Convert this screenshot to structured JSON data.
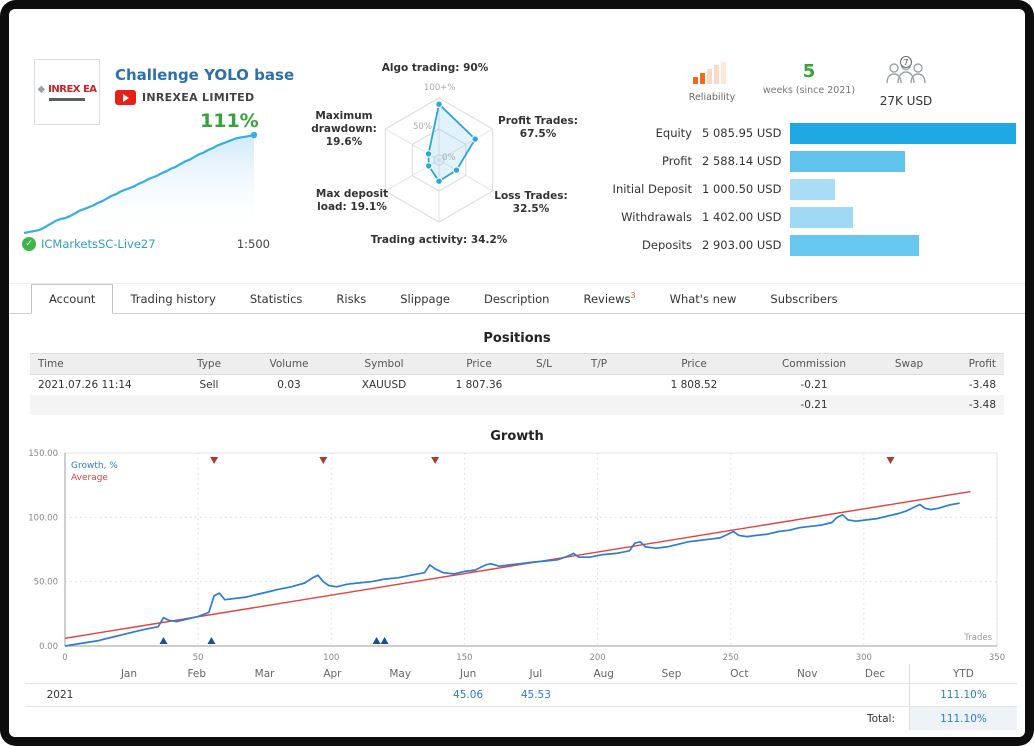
{
  "header": {
    "logo_text": "INREX EA",
    "title": "Challenge YOLO base",
    "company": "INREXEA LIMITED",
    "growth_badge": "111%",
    "account": "ICMarketsSC-Live27",
    "leverage": "1:500"
  },
  "reliability": {
    "label": "Reliability",
    "weeks_value": "5",
    "weeks_caption": "weeks (since 2021)",
    "subscribers_count": "7",
    "funds": "27K USD"
  },
  "radar": {
    "axes": [
      {
        "label": "Algo trading: 90%",
        "value": 90
      },
      {
        "label": "Profit Trades: 67.5%",
        "value": 67.5
      },
      {
        "label": "Loss Trades: 32.5%",
        "value": 32.5
      },
      {
        "label": "Trading activity: 34.2%",
        "value": 34.2
      },
      {
        "label": "Max deposit load: 19.1%",
        "value": 19.1
      },
      {
        "label": "Maximum drawdown: 19.6%",
        "value": 19.6
      }
    ],
    "rings": [
      "100+%",
      "50%",
      "0%"
    ],
    "accent": "#2aa6da"
  },
  "stats": {
    "rows": [
      {
        "label": "Equity",
        "value": "5 085.95 USD",
        "bar_pct": 100,
        "color": "#1fa9e4"
      },
      {
        "label": "Profit",
        "value": "2 588.14 USD",
        "bar_pct": 51,
        "color": "#5fc3ec"
      },
      {
        "label": "Initial Deposit",
        "value": "1 000.50 USD",
        "bar_pct": 20,
        "color": "#a9dcf6"
      },
      {
        "label": "Withdrawals",
        "value": "1 402.00 USD",
        "bar_pct": 28,
        "color": "#a0d9f4"
      },
      {
        "label": "Deposits",
        "value": "2 903.00 USD",
        "bar_pct": 57,
        "color": "#67c7ef"
      }
    ]
  },
  "tabs": {
    "active_index": 0,
    "items": [
      {
        "label": "Account"
      },
      {
        "label": "Trading history"
      },
      {
        "label": "Statistics"
      },
      {
        "label": "Risks"
      },
      {
        "label": "Slippage"
      },
      {
        "label": "Description"
      },
      {
        "label": "Reviews",
        "sup": "3"
      },
      {
        "label": "What's new"
      },
      {
        "label": "Subscribers"
      }
    ]
  },
  "positions": {
    "title": "Positions",
    "columns": [
      "Time",
      "Type",
      "Volume",
      "Symbol",
      "Price",
      "S/L",
      "T/P",
      "Price",
      "Commission",
      "Swap",
      "Profit"
    ],
    "row": [
      "2021.07.26 11:14",
      "Sell",
      "0.03",
      "XAUUSD",
      "1 807.36",
      "",
      "",
      "1 808.52",
      "-0.21",
      "",
      "-3.48"
    ],
    "negative_cols": [
      8,
      10
    ],
    "summary": [
      "",
      "",
      "",
      "",
      "",
      "",
      "",
      "",
      "-0.21",
      "",
      "-3.48"
    ]
  },
  "growth_section_title": "Growth",
  "chart_data": {
    "type": "line",
    "title": "Growth",
    "xlabel": "Trades",
    "ylabel": "Growth, %",
    "xlim": [
      0,
      350
    ],
    "ylim": [
      0,
      150
    ],
    "xticks": [
      0,
      50,
      100,
      150,
      200,
      250,
      300,
      350
    ],
    "yticks": [
      {
        "v": 150,
        "label": "150.00"
      },
      {
        "v": 100,
        "label": "100.00"
      },
      {
        "v": 50,
        "label": "50.00"
      },
      {
        "v": 0,
        "label": "0.00"
      }
    ],
    "grid": true,
    "legend_position": "top-left",
    "series": [
      {
        "name": "Growth, %",
        "color": "#2d7dd2",
        "width": 1.7,
        "points": [
          [
            0,
            0
          ],
          [
            6,
            2
          ],
          [
            12,
            4
          ],
          [
            18,
            7
          ],
          [
            24,
            10
          ],
          [
            30,
            13
          ],
          [
            35,
            15
          ],
          [
            37,
            22
          ],
          [
            39,
            20
          ],
          [
            42,
            19
          ],
          [
            46,
            21
          ],
          [
            50,
            23
          ],
          [
            54,
            26
          ],
          [
            56,
            39
          ],
          [
            58,
            41
          ],
          [
            60,
            36
          ],
          [
            64,
            37
          ],
          [
            68,
            38
          ],
          [
            72,
            40
          ],
          [
            76,
            42
          ],
          [
            80,
            44
          ],
          [
            85,
            46
          ],
          [
            90,
            49
          ],
          [
            93,
            53
          ],
          [
            95,
            55
          ],
          [
            97,
            50
          ],
          [
            99,
            47
          ],
          [
            102,
            46
          ],
          [
            106,
            48
          ],
          [
            110,
            49
          ],
          [
            115,
            50
          ],
          [
            120,
            52
          ],
          [
            125,
            53
          ],
          [
            130,
            55
          ],
          [
            135,
            57
          ],
          [
            137,
            63
          ],
          [
            139,
            60
          ],
          [
            142,
            57
          ],
          [
            146,
            56
          ],
          [
            150,
            58
          ],
          [
            154,
            59
          ],
          [
            158,
            63
          ],
          [
            160,
            64
          ],
          [
            163,
            62
          ],
          [
            167,
            63
          ],
          [
            171,
            64
          ],
          [
            175,
            65
          ],
          [
            180,
            66
          ],
          [
            185,
            67
          ],
          [
            189,
            70
          ],
          [
            191,
            72
          ],
          [
            193,
            69
          ],
          [
            197,
            69
          ],
          [
            202,
            71
          ],
          [
            207,
            72
          ],
          [
            212,
            74
          ],
          [
            214,
            80
          ],
          [
            216,
            81
          ],
          [
            218,
            77
          ],
          [
            222,
            76
          ],
          [
            226,
            77
          ],
          [
            230,
            79
          ],
          [
            234,
            81
          ],
          [
            238,
            82
          ],
          [
            242,
            83
          ],
          [
            246,
            84
          ],
          [
            249,
            87
          ],
          [
            251,
            89
          ],
          [
            253,
            86
          ],
          [
            256,
            85
          ],
          [
            260,
            86
          ],
          [
            264,
            87
          ],
          [
            268,
            89
          ],
          [
            272,
            90
          ],
          [
            276,
            92
          ],
          [
            280,
            93
          ],
          [
            284,
            94
          ],
          [
            288,
            96
          ],
          [
            290,
            100
          ],
          [
            292,
            102
          ],
          [
            294,
            98
          ],
          [
            297,
            97
          ],
          [
            301,
            98
          ],
          [
            305,
            99
          ],
          [
            309,
            101
          ],
          [
            313,
            103
          ],
          [
            316,
            105
          ],
          [
            319,
            108
          ],
          [
            321,
            110
          ],
          [
            323,
            107
          ],
          [
            325,
            106
          ],
          [
            328,
            107
          ],
          [
            331,
            109
          ],
          [
            333,
            110
          ],
          [
            336,
            111
          ]
        ]
      },
      {
        "name": "Average",
        "color": "#e8403a",
        "width": 1.4,
        "points": [
          [
            0,
            6
          ],
          [
            340,
            120
          ]
        ]
      }
    ],
    "markers_top_trades": [
      56,
      97,
      139,
      310
    ],
    "markers_bottom_trades": [
      37,
      55,
      117,
      120
    ],
    "mini": {
      "end_label": "111%",
      "points": [
        0,
        1,
        2,
        3,
        5,
        8,
        11,
        14,
        16,
        17,
        19,
        22,
        25,
        27,
        29,
        31,
        34,
        36,
        39,
        42,
        44,
        47,
        49,
        51,
        53,
        56,
        58,
        61,
        63,
        65,
        68,
        70,
        73,
        75,
        78,
        81,
        83,
        86,
        89,
        91,
        94,
        96,
        99,
        101,
        103,
        105,
        107,
        108,
        109,
        110,
        111
      ]
    }
  },
  "monthly": {
    "year": "2021",
    "months": [
      "Jan",
      "Feb",
      "Mar",
      "Apr",
      "May",
      "Jun",
      "Jul",
      "Aug",
      "Sep",
      "Oct",
      "Nov",
      "Dec"
    ],
    "values": [
      "",
      "",
      "",
      "",
      "",
      "45.06",
      "45.53",
      "",
      "",
      "",
      "",
      ""
    ],
    "ytd_header": "YTD",
    "ytd_value": "111.10%",
    "total_label": "Total:",
    "total_value": "111.10%"
  }
}
